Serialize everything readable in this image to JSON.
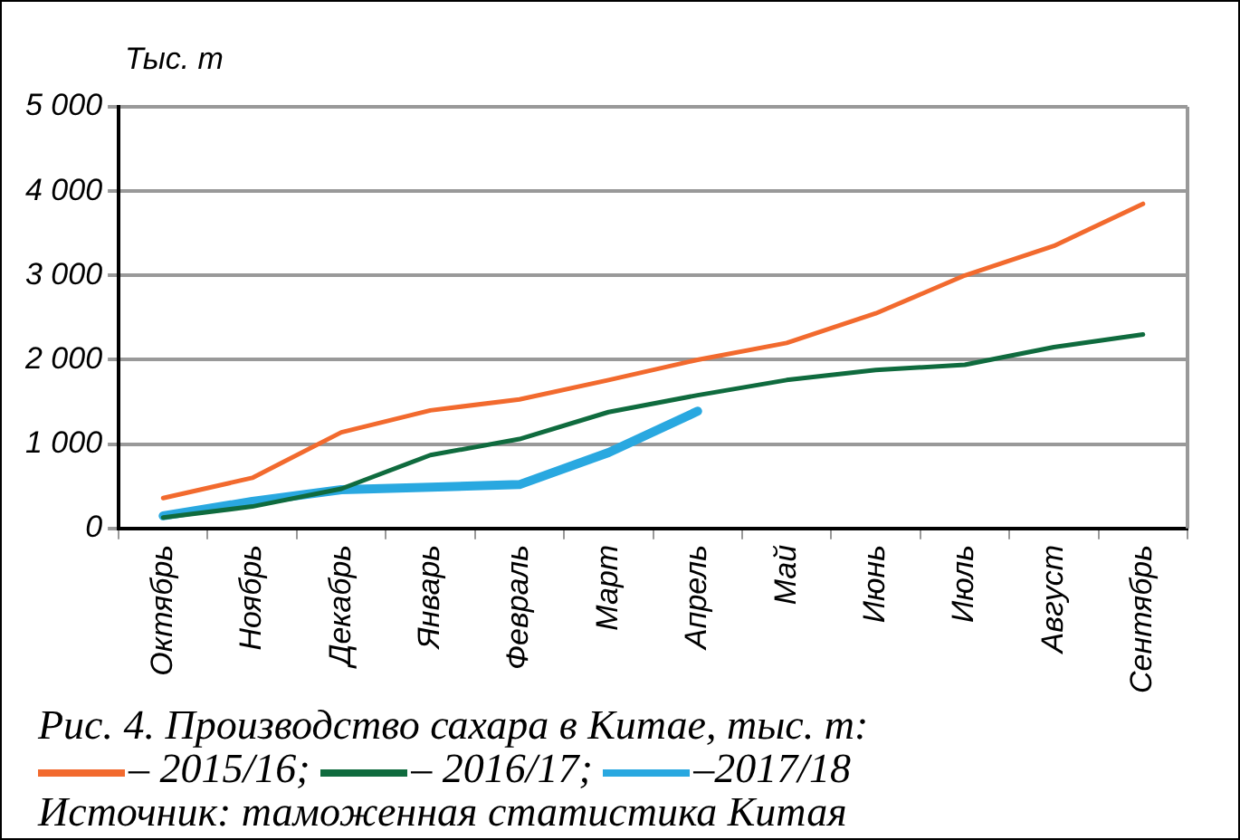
{
  "chart_data": {
    "type": "line",
    "title": "Рис. 4. Производство сахара в Китае, тыс. т:",
    "ylabel": "Тыс. т",
    "categories": [
      "Октябрь",
      "Ноябрь",
      "Декабрь",
      "Январь",
      "Февраль",
      "Март",
      "Апрель",
      "Май",
      "Июнь",
      "Июль",
      "Август",
      "Сентябрь"
    ],
    "series": [
      {
        "name": "– 2015/16;",
        "color": "#f26a2e",
        "values": [
          360,
          600,
          1140,
          1400,
          1530,
          1760,
          2000,
          2200,
          2550,
          3000,
          3350,
          3850
        ]
      },
      {
        "name": "– 2016/17;",
        "color": "#0f6b3e",
        "values": [
          130,
          260,
          470,
          870,
          1060,
          1380,
          1580,
          1760,
          1880,
          1940,
          2150,
          2300
        ]
      },
      {
        "name": "–2017/18",
        "color": "#29a8e0",
        "values": [
          150,
          320,
          460,
          490,
          520,
          900,
          1390,
          null,
          null,
          null,
          null,
          null
        ]
      }
    ],
    "ylim": [
      0,
      5000
    ],
    "yticks": [
      {
        "value": 0,
        "label": "0"
      },
      {
        "value": 1000,
        "label": "1 000"
      },
      {
        "value": 2000,
        "label": "2 000"
      },
      {
        "value": 3000,
        "label": "3 000"
      },
      {
        "value": 4000,
        "label": "4 000"
      },
      {
        "value": 5000,
        "label": "5 000"
      }
    ],
    "grid": "y",
    "legend": "bottom",
    "marker": "none",
    "line_style": "solid",
    "annotations": [
      "Источник: таможенная статистика Китая"
    ]
  }
}
